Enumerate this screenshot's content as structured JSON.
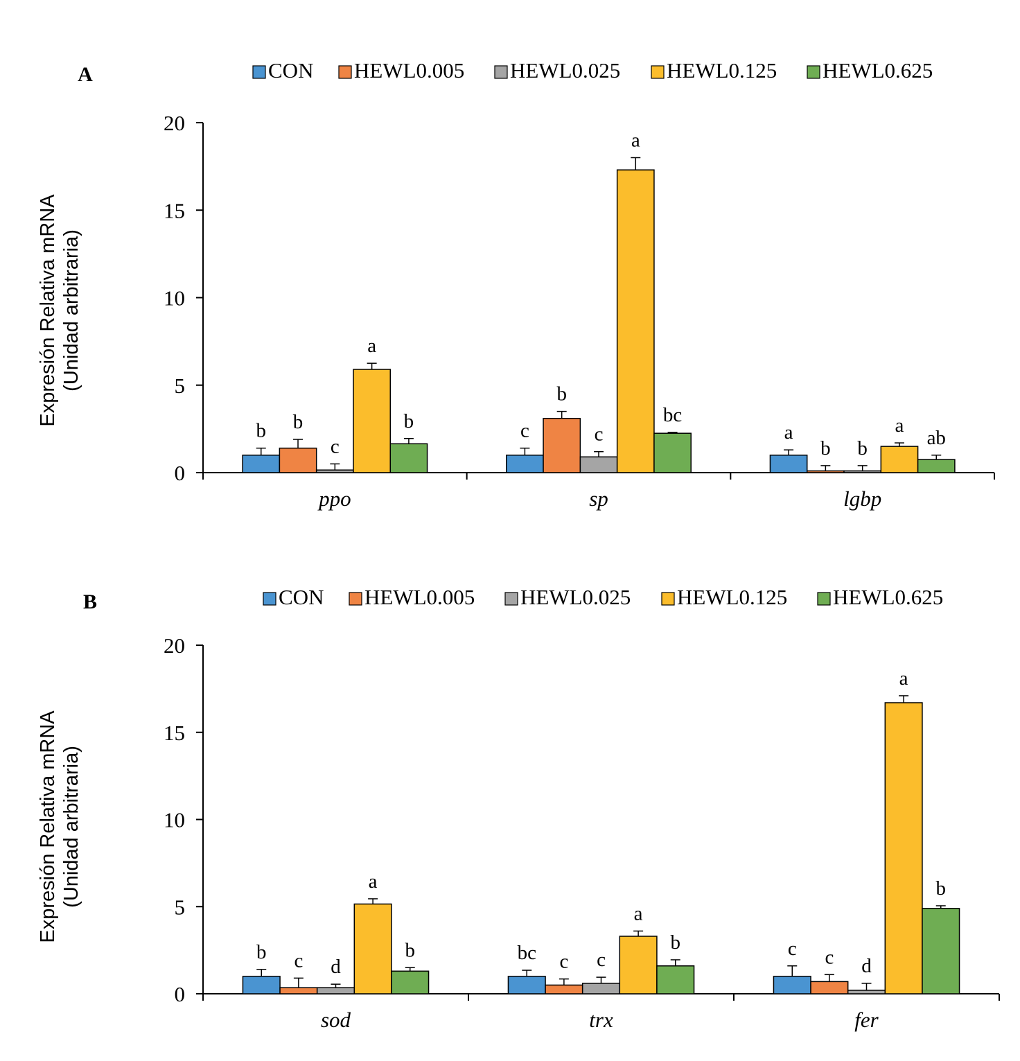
{
  "legend_labels": [
    "CON",
    "HEWL0.005",
    "HEWL0.025",
    "HEWL0.125",
    "HEWL0.625"
  ],
  "colors": [
    "#4a94d1",
    "#ef8444",
    "#a5a5a5",
    "#fbbd2c",
    "#6fad53"
  ],
  "chart_data": [
    {
      "type": "bar",
      "panel": "A",
      "ylabel": [
        "Expresión Relativa mRNA",
        "(Unidad arbitraria)"
      ],
      "ylim": [
        0,
        20
      ],
      "yticks": [
        0,
        5,
        10,
        15,
        20
      ],
      "legend_position": "top",
      "categories": [
        "ppo",
        "sp",
        "lgbp"
      ],
      "series": [
        {
          "name": "CON",
          "values": [
            1.0,
            1.0,
            1.0
          ],
          "errors": [
            0.4,
            0.4,
            0.3
          ],
          "letters": [
            "b",
            "c",
            "a"
          ]
        },
        {
          "name": "HEWL0.005",
          "values": [
            1.4,
            3.1,
            0.1
          ],
          "errors": [
            0.5,
            0.4,
            0.3
          ],
          "letters": [
            "b",
            "b",
            "b"
          ]
        },
        {
          "name": "HEWL0.025",
          "values": [
            0.15,
            0.9,
            0.1
          ],
          "errors": [
            0.35,
            0.3,
            0.3
          ],
          "letters": [
            "c",
            "c",
            "b"
          ]
        },
        {
          "name": "HEWL0.125",
          "values": [
            5.9,
            17.3,
            1.5
          ],
          "errors": [
            0.35,
            0.7,
            0.2
          ],
          "letters": [
            "a",
            "a",
            "a"
          ]
        },
        {
          "name": "HEWL0.625",
          "values": [
            1.65,
            2.25,
            0.75
          ],
          "errors": [
            0.3,
            0.05,
            0.25
          ],
          "letters": [
            "b",
            "bc",
            "ab"
          ]
        }
      ]
    },
    {
      "type": "bar",
      "panel": "B",
      "ylabel": [
        "Expresión Relativa mRNA",
        "(Unidad arbitraria)"
      ],
      "ylim": [
        0,
        20
      ],
      "yticks": [
        0,
        5,
        10,
        15,
        20
      ],
      "legend_position": "top",
      "categories": [
        "sod",
        "trx",
        "fer"
      ],
      "series": [
        {
          "name": "CON",
          "values": [
            1.0,
            1.0,
            1.0
          ],
          "errors": [
            0.4,
            0.35,
            0.6
          ],
          "letters": [
            "b",
            "bc",
            "c"
          ]
        },
        {
          "name": "HEWL0.005",
          "values": [
            0.35,
            0.5,
            0.7
          ],
          "errors": [
            0.55,
            0.35,
            0.4
          ],
          "letters": [
            "c",
            "c",
            "c"
          ]
        },
        {
          "name": "HEWL0.025",
          "values": [
            0.35,
            0.6,
            0.2
          ],
          "errors": [
            0.2,
            0.35,
            0.4
          ],
          "letters": [
            "d",
            "c",
            "d"
          ]
        },
        {
          "name": "HEWL0.125",
          "values": [
            5.15,
            3.3,
            16.7
          ],
          "errors": [
            0.3,
            0.3,
            0.4
          ],
          "letters": [
            "a",
            "a",
            "a"
          ]
        },
        {
          "name": "HEWL0.625",
          "values": [
            1.3,
            1.6,
            4.9
          ],
          "errors": [
            0.2,
            0.35,
            0.15
          ],
          "letters": [
            "b",
            "b",
            "b"
          ]
        }
      ]
    }
  ]
}
